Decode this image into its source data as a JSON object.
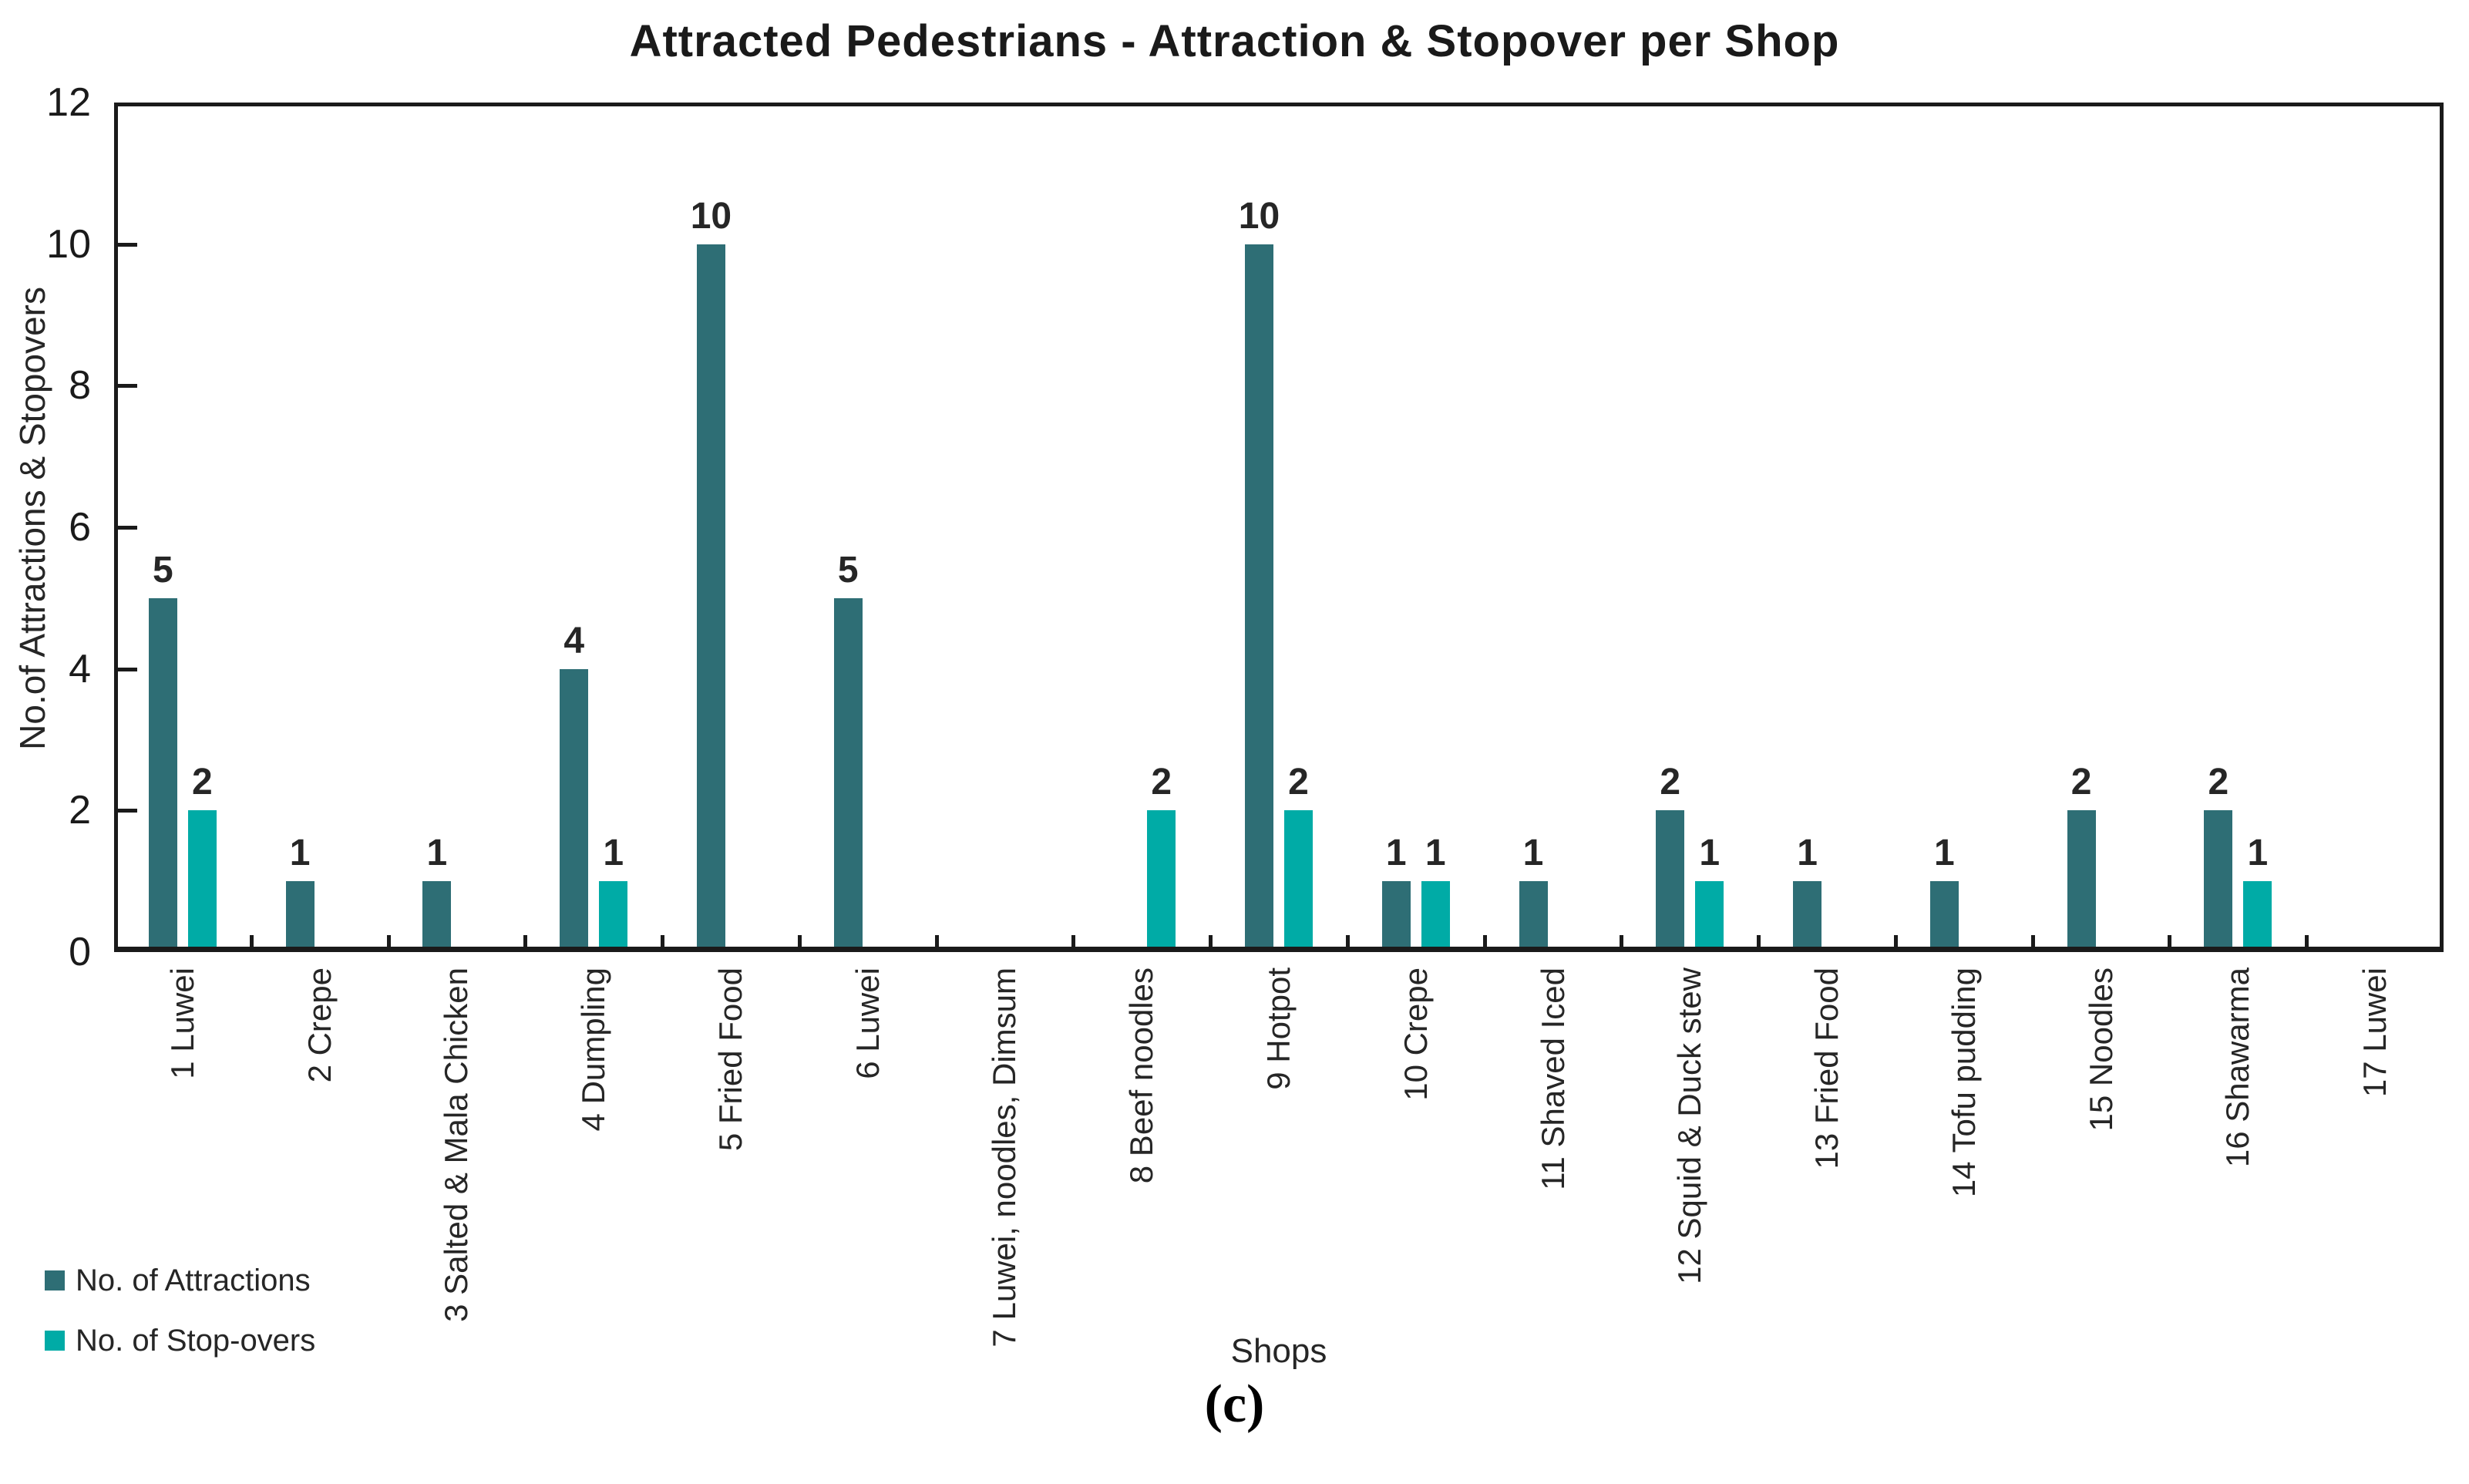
{
  "title": "Attracted Pedestrians - Attraction & Stopover per Shop",
  "axes": {
    "y_title": "No.of Attractions & Stopovers",
    "x_title": "Shops"
  },
  "caption": "(c)",
  "chart_data": {
    "type": "bar",
    "title": "Attracted Pedestrians - Attraction & Stopover per Shop",
    "xlabel": "Shops",
    "ylabel": "No.of Attractions & Stopovers",
    "ylim": [
      0,
      12
    ],
    "yticks": [
      0,
      2,
      4,
      6,
      8,
      10,
      12
    ],
    "grid": false,
    "legend_position": "bottom-left",
    "bar_value_labels": true,
    "categories": [
      "1 Luwei",
      "2 Crepe",
      "3 Salted & Mala Chicken",
      "4 Dumpling",
      "5 Fried Food",
      "6 Luwei",
      "7 Luwei, noodles, Dimsum",
      "8 Beef noodles",
      "9 Hotpot",
      "10 Crepe",
      "11 Shaved Iced",
      "12 Squid & Duck stew",
      "13 Fried Food",
      "14 Tofu pudding",
      "15 Noodles",
      "16 Shawarma",
      "17 Luwei"
    ],
    "series": [
      {
        "name": "No. of Attractions",
        "color": "#2E6E75",
        "values": [
          5,
          1,
          1,
          4,
          10,
          5,
          0,
          0,
          10,
          1,
          1,
          2,
          1,
          1,
          2,
          2,
          0
        ]
      },
      {
        "name": "No. of Stop-overs",
        "color": "#00ABA6",
        "values": [
          2,
          0,
          0,
          1,
          0,
          0,
          0,
          2,
          2,
          1,
          0,
          1,
          0,
          0,
          0,
          1,
          0
        ]
      }
    ]
  }
}
